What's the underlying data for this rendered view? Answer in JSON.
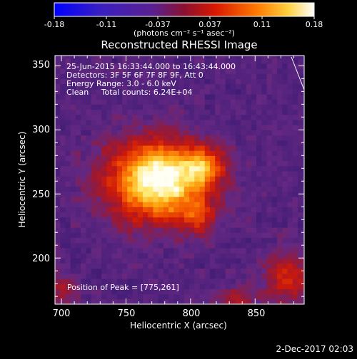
{
  "colorbar": {
    "ticks": [
      "-0.18",
      "-0.11",
      "-0.037",
      "0.037",
      "0.11",
      "0.18"
    ],
    "range": [
      -0.18,
      0.18
    ],
    "unit_label": "(photons cm⁻² s⁻¹ asec⁻²)"
  },
  "chart_data": {
    "type": "heatmap",
    "title": "Reconstructed RHESSI Image",
    "xlabel": "Heliocentric X (arcsec)",
    "ylabel": "Heliocentric Y (arcsec)",
    "xlim": [
      695,
      888
    ],
    "ylim": [
      164,
      358
    ],
    "xticks": [
      "700",
      "750",
      "800",
      "850"
    ],
    "yticks": [
      "200",
      "250",
      "300",
      "350"
    ],
    "annotations": [
      "25-Jun-2015 16:33:44.000 to 16:43:44.000",
      "Detectors: 3F 5F 6F 7F 8F 9F, Att 0",
      "Energy Range: 3.0 - 6.0 keV",
      "Clean     Total counts: 6.24E+04"
    ],
    "peak_label": "Position of Peak = [775,261]",
    "peak": [
      775,
      261
    ],
    "colormap": "blue-purple-red-orange-yellow-white"
  },
  "footer": {
    "date": "2-Dec-2017 02:03"
  }
}
